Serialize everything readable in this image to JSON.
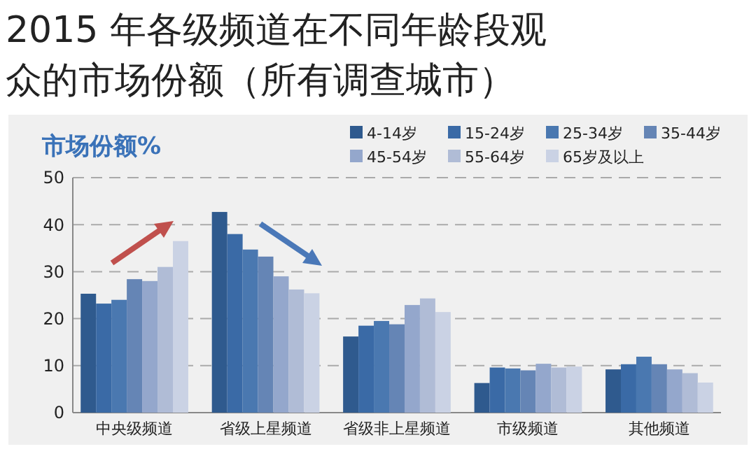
{
  "chart_data": {
    "type": "bar",
    "title": "2015 年各级频道在不同年龄段观众的市场份额（所有调查城市）",
    "ylabel": "市场份额%",
    "categories": [
      "中央级频道",
      "省级上星频道",
      "省级非上星频道",
      "市级频道",
      "其他频道"
    ],
    "series": [
      {
        "name": "4-14岁",
        "color": "#2f5a8e",
        "values": [
          25.3,
          42.7,
          16.2,
          6.3,
          9.2
        ]
      },
      {
        "name": "15-24岁",
        "color": "#3a6aa6",
        "values": [
          23.2,
          38.0,
          18.5,
          9.6,
          10.3
        ]
      },
      {
        "name": "25-34岁",
        "color": "#4a78b0",
        "values": [
          24.0,
          34.7,
          19.5,
          9.4,
          11.9
        ]
      },
      {
        "name": "35-44岁",
        "color": "#6585b5",
        "values": [
          28.4,
          33.2,
          18.8,
          9.0,
          10.3
        ]
      },
      {
        "name": "45-54岁",
        "color": "#94a7cc",
        "values": [
          28.0,
          29.0,
          22.9,
          10.4,
          9.2
        ]
      },
      {
        "name": "55-64岁",
        "color": "#b0bcd6",
        "values": [
          31.0,
          26.2,
          24.3,
          9.6,
          8.4
        ]
      },
      {
        "name": "65岁及以上",
        "color": "#cad2e4",
        "values": [
          36.5,
          25.4,
          21.4,
          9.8,
          6.4
        ]
      }
    ],
    "ylim": [
      0,
      50
    ],
    "yticks": [
      0,
      10,
      20,
      30,
      40,
      50
    ],
    "grid": "y",
    "legend": "top right"
  }
}
